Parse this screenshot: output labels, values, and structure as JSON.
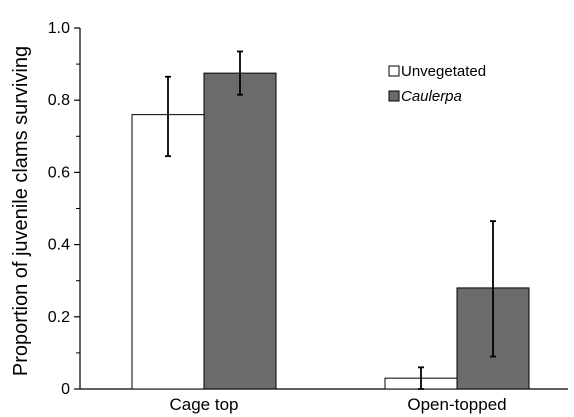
{
  "chart_data": {
    "type": "bar",
    "title": "",
    "xlabel": "",
    "ylabel": "Proportion of juvenile clams surviving",
    "ylim": [
      0,
      1.0
    ],
    "yticks": [
      "0",
      "0.2",
      "0.4",
      "0.6",
      "0.8",
      "1.0"
    ],
    "categories": [
      "Cage top",
      "Open-topped"
    ],
    "series": [
      {
        "name": "Unvegetated",
        "color": "#ffffff",
        "values": [
          0.76,
          0.03
        ],
        "error_low": [
          0.645,
          0.0
        ],
        "error_high": [
          0.865,
          0.06
        ]
      },
      {
        "name": "Caulerpa",
        "color": "#6b6b6b",
        "values": [
          0.875,
          0.28
        ],
        "error_low": [
          0.815,
          0.09
        ],
        "error_high": [
          0.935,
          0.465
        ]
      }
    ],
    "legend_position": "top-right",
    "grid": false
  }
}
